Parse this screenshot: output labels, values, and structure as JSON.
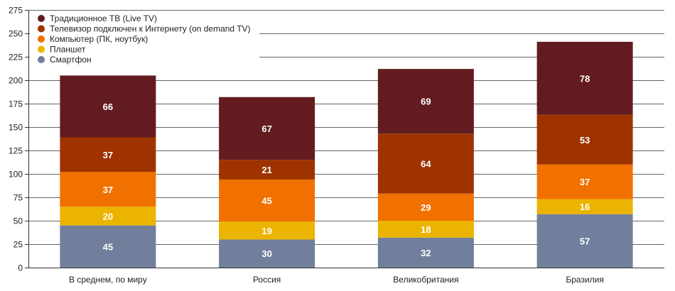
{
  "chart_data": {
    "type": "bar",
    "stacked": true,
    "title": "",
    "xlabel": "",
    "ylabel": "",
    "ylim": [
      0,
      275
    ],
    "yticks": [
      0,
      25,
      50,
      75,
      100,
      125,
      150,
      175,
      200,
      225,
      250,
      275
    ],
    "grid": true,
    "legend_position": "top-left",
    "categories": [
      "В среднем, по миру",
      "Россия",
      "Великобритания",
      "Бразилия"
    ],
    "series": [
      {
        "name": "Смартфон",
        "color": "#717f9c",
        "values": [
          45,
          30,
          32,
          57
        ]
      },
      {
        "name": "Планшет",
        "color": "#ebb400",
        "values": [
          20,
          19,
          18,
          16
        ]
      },
      {
        "name": "Компьютер (ПК, ноутбук)",
        "color": "#f07000",
        "values": [
          37,
          45,
          29,
          37
        ]
      },
      {
        "name": "Телевизор подключен к Интернету (on demand TV)",
        "color": "#9e3300",
        "values": [
          37,
          21,
          64,
          53
        ]
      },
      {
        "name": "Традиционное ТВ (Live TV)",
        "color": "#621c20",
        "values": [
          66,
          67,
          69,
          78
        ]
      }
    ]
  }
}
